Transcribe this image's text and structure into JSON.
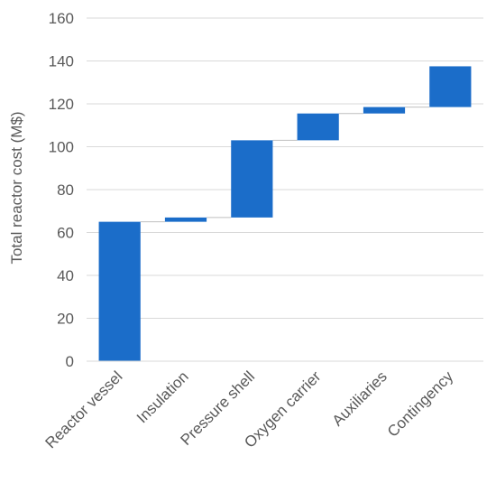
{
  "chart_data": {
    "type": "bar",
    "subtype": "waterfall",
    "title": "",
    "xlabel": "",
    "ylabel": "Total reactor cost (M$)",
    "ylim": [
      0,
      160
    ],
    "yticks": [
      0,
      20,
      40,
      60,
      80,
      100,
      120,
      140,
      160
    ],
    "grid": true,
    "legend": "none",
    "categories": [
      "Reactor vessel",
      "Insulation",
      "Pressure shell",
      "Oxygen carrier",
      "Auxiliaries",
      "Contingency"
    ],
    "values": [
      65,
      2,
      36,
      12.5,
      3,
      19
    ],
    "cumulative_end": [
      65,
      67,
      103,
      115.5,
      118.5,
      137.5
    ],
    "bar_color": "#1B6DC9",
    "gridline_color": "#D9D9D9",
    "connector_color": "#BFBFBF",
    "text_color": "#595959"
  }
}
